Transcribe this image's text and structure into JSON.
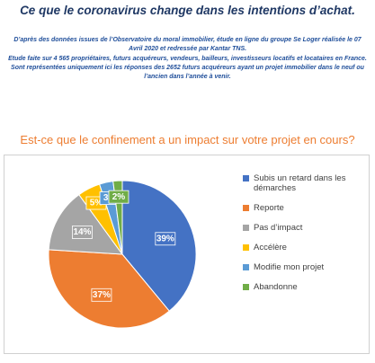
{
  "chart_data": {
    "type": "pie",
    "title": "Ce que le coronavirus change dans les intentions d’achat.",
    "notes": [
      "D’après des données issues de l’Observatoire du moral immobilier, étude en ligne du groupe Se Loger réalisée le 07 Avril 2020 et redressée par Kantar TNS.",
      "Etude faite sur 4 565 propriétaires, futurs acquéreurs, vendeurs, bailleurs, investisseurs locatifs et locataires en France. Sont représentées uniquement ici les réponses des 2652 futurs acquéreurs ayant un projet immobilier dans le neuf ou l’ancien dans l’année à venir."
    ],
    "subtitle": "Est-ce que le confinement a un impact sur votre projet en cours?",
    "categories": [
      "Subis un retard dans les démarches",
      "Reporte",
      "Pas d’impact",
      "Accélère",
      "Modifie mon projet",
      "Abandonne"
    ],
    "values": [
      39,
      37,
      14,
      5,
      3,
      2
    ],
    "value_labels": [
      "39%",
      "37%",
      "14%",
      "5%",
      "3%",
      "2%"
    ],
    "colors": [
      "#4472c4",
      "#ed7d31",
      "#a5a5a5",
      "#ffc000",
      "#5b9bd5",
      "#70ad47"
    ],
    "legend": "right"
  }
}
